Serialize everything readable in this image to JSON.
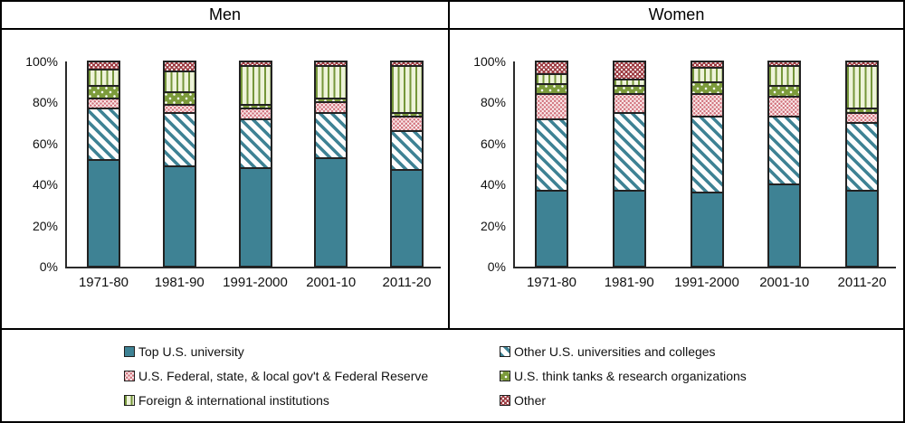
{
  "panels": [
    {
      "title": "Men"
    },
    {
      "title": "Women"
    }
  ],
  "legend": {
    "items": [
      {
        "label": "Top U.S. university",
        "pattern": "solid-teal"
      },
      {
        "label": "Other U.S. universities and colleges",
        "pattern": "teal-diagonal"
      },
      {
        "label": "U.S.  Federal, state, & local gov't & Federal Reserve",
        "pattern": "pink-dots"
      },
      {
        "label": "U.S. think tanks & research organizations",
        "pattern": "green-dots"
      },
      {
        "label": "Foreign & international institutions",
        "pattern": "green-vstripes"
      },
      {
        "label": "Other",
        "pattern": "darkred-dots"
      }
    ]
  },
  "colors": {
    "teal": "#3e8294",
    "pink_dot": "#d1737d",
    "olive_green": "#7c9b3b",
    "light_green_bg": "#eef3da",
    "dark_red": "#9c3a40",
    "axis": "#2b2b2b"
  },
  "chart_data": [
    {
      "type": "bar",
      "stacked": true,
      "title": "Men",
      "categories": [
        "1971-80",
        "1981-90",
        "1991-2000",
        "2001-10",
        "2011-20"
      ],
      "yticks": [
        "0%",
        "20%",
        "40%",
        "60%",
        "80%",
        "100%"
      ],
      "ylim": [
        0,
        100
      ],
      "grid": false,
      "legend_position": "bottom",
      "series": [
        {
          "name": "Top U.S. university",
          "pattern": "solid-teal",
          "values": [
            52,
            49,
            48,
            53,
            47
          ]
        },
        {
          "name": "Other U.S. universities and colleges",
          "pattern": "teal-diagonal",
          "values": [
            25,
            26,
            24,
            22,
            19
          ]
        },
        {
          "name": "U.S.  Federal, state, & local gov't & Federal Reserve",
          "pattern": "pink-dots",
          "values": [
            5,
            4,
            5,
            5,
            7
          ]
        },
        {
          "name": "U.S. think tanks & research organizations",
          "pattern": "green-dots",
          "values": [
            6,
            6,
            2,
            2,
            2
          ]
        },
        {
          "name": "Foreign & international institutions",
          "pattern": "green-vstripes",
          "values": [
            8,
            10,
            19,
            16,
            23
          ]
        },
        {
          "name": "Other",
          "pattern": "darkred-dots",
          "values": [
            4,
            5,
            2,
            2,
            2
          ]
        }
      ]
    },
    {
      "type": "bar",
      "stacked": true,
      "title": "Women",
      "categories": [
        "1971-80",
        "1981-90",
        "1991-2000",
        "2001-10",
        "2011-20"
      ],
      "yticks": [
        "0%",
        "20%",
        "40%",
        "60%",
        "80%",
        "100%"
      ],
      "ylim": [
        0,
        100
      ],
      "grid": false,
      "legend_position": "bottom",
      "series": [
        {
          "name": "Top U.S. university",
          "pattern": "solid-teal",
          "values": [
            37,
            37,
            36,
            40,
            37
          ]
        },
        {
          "name": "Other U.S. universities and colleges",
          "pattern": "teal-diagonal",
          "values": [
            35,
            38,
            37,
            33,
            33
          ]
        },
        {
          "name": "U.S.  Federal, state, & local gov't & Federal Reserve",
          "pattern": "pink-dots",
          "values": [
            12,
            9,
            11,
            10,
            5
          ]
        },
        {
          "name": "U.S. think tanks & research organizations",
          "pattern": "green-dots",
          "values": [
            5,
            4,
            6,
            5,
            2
          ]
        },
        {
          "name": "Foreign & international institutions",
          "pattern": "green-vstripes",
          "values": [
            5,
            3,
            7,
            10,
            21
          ]
        },
        {
          "name": "Other",
          "pattern": "darkred-dots",
          "values": [
            6,
            9,
            3,
            2,
            2
          ]
        }
      ]
    }
  ]
}
